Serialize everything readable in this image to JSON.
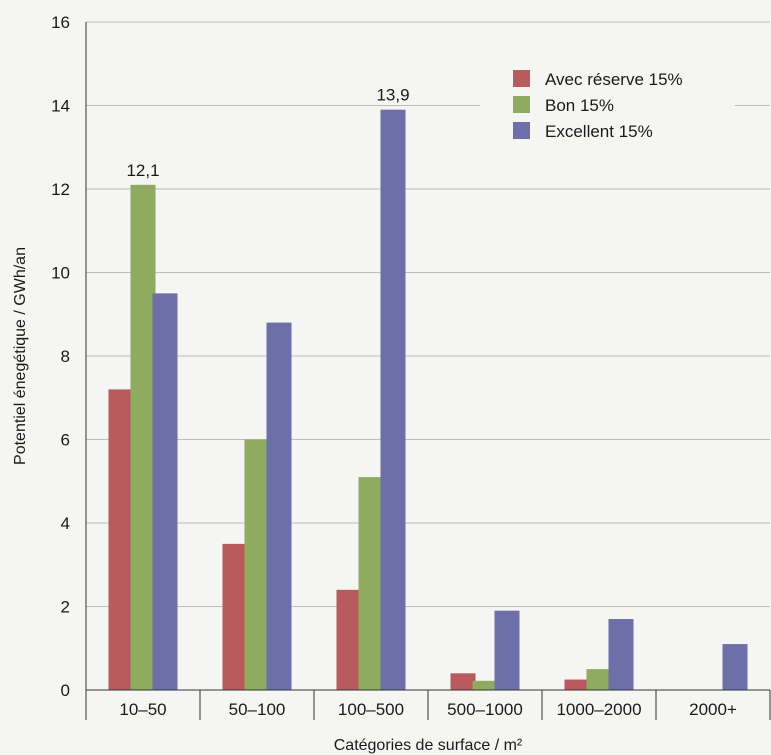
{
  "chart_data": {
    "type": "bar",
    "categories": [
      "10–50",
      "50–100",
      "100–500",
      "500–1000",
      "1000–2000",
      "2000+"
    ],
    "series": [
      {
        "name": "Avec réserve 15%",
        "color": "#b85a5e",
        "values": [
          7.2,
          3.5,
          2.4,
          0.4,
          0.25,
          0
        ]
      },
      {
        "name": "Bon 15%",
        "color": "#8fab5f",
        "values": [
          12.1,
          6.0,
          5.1,
          0.22,
          0.5,
          0
        ]
      },
      {
        "name": "Excellent 15%",
        "color": "#6d6fa8",
        "values": [
          9.5,
          8.8,
          13.9,
          1.9,
          1.7,
          1.1
        ]
      }
    ],
    "data_labels": [
      {
        "category_index": 0,
        "series_index": 1,
        "text": "12,1"
      },
      {
        "category_index": 2,
        "series_index": 2,
        "text": "13,9"
      }
    ],
    "ylim": [
      0,
      16
    ],
    "yticks": [
      0,
      2,
      4,
      6,
      8,
      10,
      12,
      14,
      16
    ],
    "xlabel": "Catégories de surface / m²",
    "ylabel": "Potentiel énegétique / GWh/an",
    "grid": true,
    "legend_position": "top-right"
  }
}
